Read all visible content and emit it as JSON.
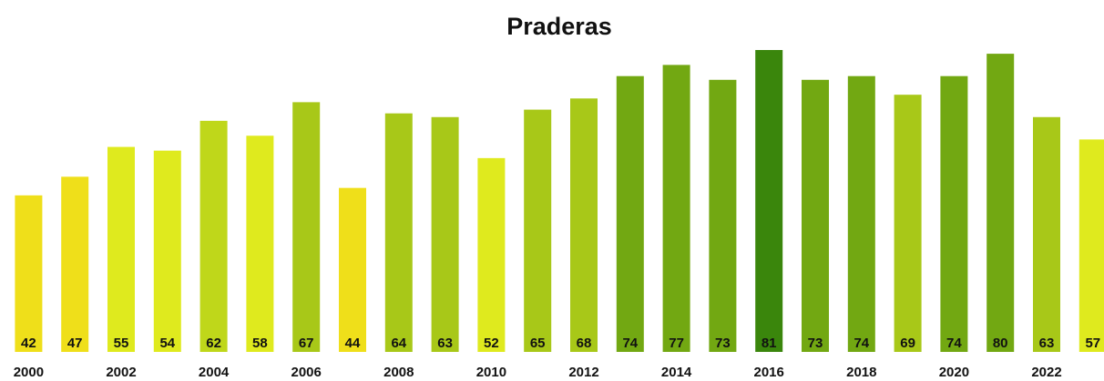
{
  "chart_data": {
    "type": "bar",
    "title": "Praderas",
    "categories": [
      "2000",
      null,
      "2002",
      null,
      "2004",
      null,
      "2006",
      null,
      "2008",
      null,
      "2010",
      null,
      "2012",
      null,
      "2014",
      null,
      "2016",
      null,
      "2018",
      null,
      "2020",
      null,
      "2022",
      null
    ],
    "values": [
      42,
      47,
      55,
      54,
      62,
      58,
      67,
      44,
      64,
      63,
      52,
      65,
      68,
      74,
      77,
      73,
      81,
      73,
      74,
      69,
      74,
      80,
      63,
      57
    ],
    "colors": [
      "#efdf1a",
      "#efdf1a",
      "#dfea1e",
      "#dfea1e",
      "#bfd71a",
      "#dfea1e",
      "#a8c818",
      "#efdf1a",
      "#a8c818",
      "#a8c818",
      "#dfea1e",
      "#a8c818",
      "#a8c818",
      "#72a812",
      "#72a812",
      "#72a812",
      "#3a860c",
      "#72a812",
      "#72a812",
      "#a8c818",
      "#72a812",
      "#72a812",
      "#a8c818",
      "#dfea1e"
    ],
    "ylim": [
      0,
      81
    ]
  }
}
